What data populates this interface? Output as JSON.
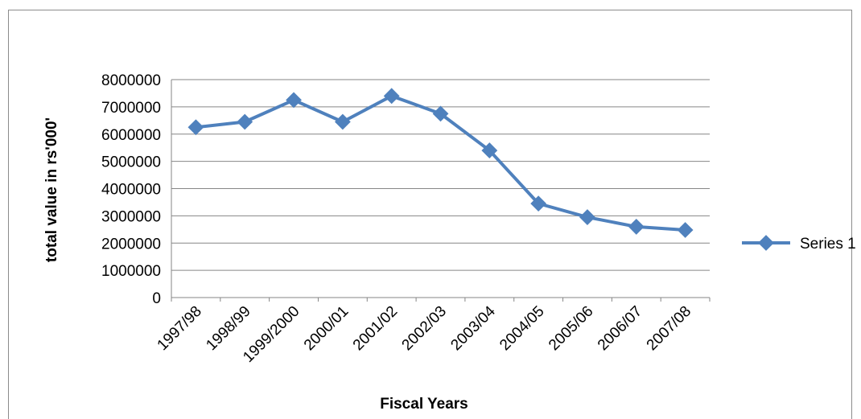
{
  "chart_data": {
    "type": "line",
    "title": "",
    "xlabel": "Fiscal Years",
    "ylabel": "total value in rs'000'",
    "categories": [
      "1997/98",
      "1998/99",
      "1999/2000",
      "2000/01",
      "2001/02",
      "2002/03",
      "2003/04",
      "2004/05",
      "2005/06",
      "2006/07",
      "2007/08"
    ],
    "series": [
      {
        "name": "Series 1",
        "values": [
          6250000,
          6450000,
          7250000,
          6450000,
          7400000,
          6750000,
          5400000,
          3450000,
          2950000,
          2600000,
          2480000
        ]
      }
    ],
    "ylim": [
      0,
      8000000
    ],
    "yticks": [
      0,
      1000000,
      2000000,
      3000000,
      4000000,
      5000000,
      6000000,
      7000000,
      8000000
    ],
    "ytick_labels": [
      "0",
      "1000000",
      "2000000",
      "3000000",
      "4000000",
      "5000000",
      "6000000",
      "7000000",
      "8000000"
    ],
    "grid": "horizontal",
    "legend_position": "right",
    "colors": {
      "series": "#4f81bd",
      "gridline": "#868686",
      "frame": "#8c8c8c"
    },
    "marker": "diamond"
  }
}
